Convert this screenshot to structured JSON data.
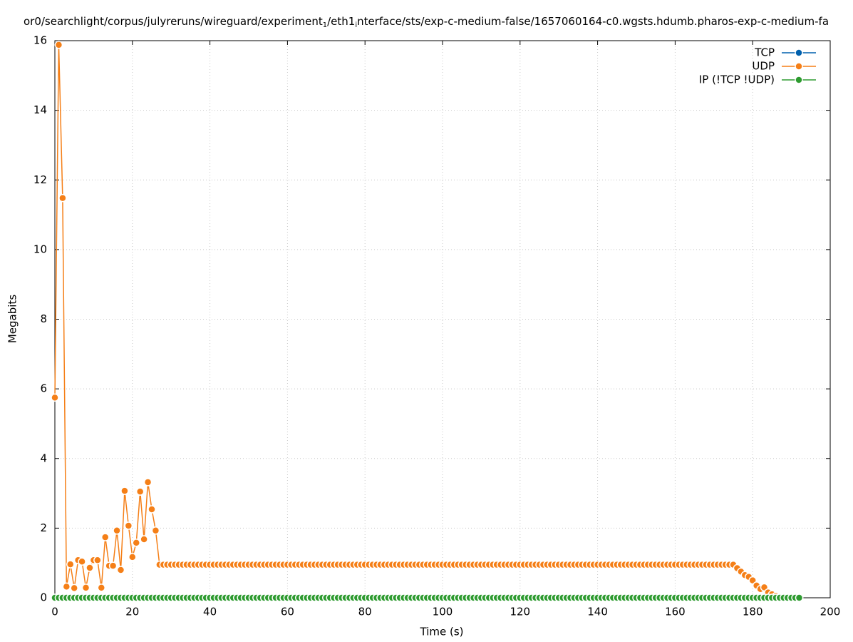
{
  "chart_data": {
    "type": "line",
    "title_segments": [
      "or0/searchlight/corpus/julyreruns/wireguard/experiment",
      "1",
      "/eth1",
      "i",
      "nterface/sts/exp-c-medium-false/1657060164-c0.wgsts.hdumb.pharos-exp-c-medium-fa"
    ],
    "xlabel": "Time (s)",
    "ylabel": "Megabits",
    "xlim": [
      0,
      200
    ],
    "ylim": [
      0,
      16
    ],
    "xticks": [
      0,
      20,
      40,
      60,
      80,
      100,
      120,
      140,
      160,
      180,
      200
    ],
    "yticks": [
      0,
      2,
      4,
      6,
      8,
      10,
      12,
      14,
      16
    ],
    "grid": true,
    "legend": "top-right",
    "x": [
      0,
      1,
      2,
      3,
      4,
      5,
      6,
      7,
      8,
      9,
      10,
      11,
      12,
      13,
      14,
      15,
      16,
      17,
      18,
      19,
      20,
      21,
      22,
      23,
      24,
      25,
      26,
      27,
      28,
      29,
      30,
      31,
      32,
      33,
      34,
      35,
      36,
      37,
      38,
      39,
      40,
      41,
      42,
      43,
      44,
      45,
      46,
      47,
      48,
      49,
      50,
      51,
      52,
      53,
      54,
      55,
      56,
      57,
      58,
      59,
      60,
      61,
      62,
      63,
      64,
      65,
      66,
      67,
      68,
      69,
      70,
      71,
      72,
      73,
      74,
      75,
      76,
      77,
      78,
      79,
      80,
      81,
      82,
      83,
      84,
      85,
      86,
      87,
      88,
      89,
      90,
      91,
      92,
      93,
      94,
      95,
      96,
      97,
      98,
      99,
      100,
      101,
      102,
      103,
      104,
      105,
      106,
      107,
      108,
      109,
      110,
      111,
      112,
      113,
      114,
      115,
      116,
      117,
      118,
      119,
      120,
      121,
      122,
      123,
      124,
      125,
      126,
      127,
      128,
      129,
      130,
      131,
      132,
      133,
      134,
      135,
      136,
      137,
      138,
      139,
      140,
      141,
      142,
      143,
      144,
      145,
      146,
      147,
      148,
      149,
      150,
      151,
      152,
      153,
      154,
      155,
      156,
      157,
      158,
      159,
      160,
      161,
      162,
      163,
      164,
      165,
      166,
      167,
      168,
      169,
      170,
      171,
      172,
      173,
      174,
      175,
      176,
      177,
      178,
      179,
      180,
      181,
      182,
      183,
      184,
      185,
      186,
      187,
      188,
      189,
      190,
      191,
      192
    ],
    "series": [
      {
        "name": "TCP",
        "color": "#0060ad",
        "values": [
          0,
          0,
          0,
          0,
          0,
          0,
          0,
          0,
          0,
          0,
          0,
          0,
          0,
          0,
          0,
          0,
          0,
          0,
          0,
          0,
          0,
          0,
          0,
          0,
          0,
          0,
          0,
          0,
          0,
          0,
          0,
          0,
          0,
          0,
          0,
          0,
          0,
          0,
          0,
          0,
          0,
          0,
          0,
          0,
          0,
          0,
          0,
          0,
          0,
          0,
          0,
          0,
          0,
          0,
          0,
          0,
          0,
          0,
          0,
          0,
          0,
          0,
          0,
          0,
          0,
          0,
          0,
          0,
          0,
          0,
          0,
          0,
          0,
          0,
          0,
          0,
          0,
          0,
          0,
          0,
          0,
          0,
          0,
          0,
          0,
          0,
          0,
          0,
          0,
          0,
          0,
          0,
          0,
          0,
          0,
          0,
          0,
          0,
          0,
          0,
          0,
          0,
          0,
          0,
          0,
          0,
          0,
          0,
          0,
          0,
          0,
          0,
          0,
          0,
          0,
          0,
          0,
          0,
          0,
          0,
          0,
          0,
          0,
          0,
          0,
          0,
          0,
          0,
          0,
          0,
          0,
          0,
          0,
          0,
          0,
          0,
          0,
          0,
          0,
          0,
          0,
          0,
          0,
          0,
          0,
          0,
          0,
          0,
          0,
          0,
          0,
          0,
          0,
          0,
          0,
          0,
          0,
          0,
          0,
          0,
          0,
          0,
          0,
          0,
          0,
          0,
          0,
          0,
          0,
          0,
          0,
          0,
          0,
          0,
          0,
          0,
          0,
          0,
          0,
          0,
          0,
          0,
          0,
          0,
          0,
          0,
          0,
          0,
          0,
          0,
          0,
          0,
          0
        ]
      },
      {
        "name": "UDP",
        "color": "#f57f17",
        "values": [
          5.75,
          15.88,
          11.48,
          0.32,
          0.96,
          0.28,
          1.08,
          1.04,
          0.29,
          0.86,
          1.08,
          1.08,
          0.29,
          1.74,
          0.92,
          0.92,
          1.93,
          0.8,
          3.07,
          2.07,
          1.17,
          1.58,
          3.05,
          1.68,
          3.32,
          2.54,
          1.93,
          0.95,
          0.95,
          0.95,
          0.95,
          0.95,
          0.95,
          0.95,
          0.95,
          0.95,
          0.95,
          0.95,
          0.95,
          0.95,
          0.95,
          0.95,
          0.95,
          0.95,
          0.95,
          0.95,
          0.95,
          0.95,
          0.95,
          0.95,
          0.95,
          0.95,
          0.95,
          0.95,
          0.95,
          0.95,
          0.95,
          0.95,
          0.95,
          0.95,
          0.95,
          0.95,
          0.95,
          0.95,
          0.95,
          0.95,
          0.95,
          0.95,
          0.95,
          0.95,
          0.95,
          0.95,
          0.95,
          0.95,
          0.95,
          0.95,
          0.95,
          0.95,
          0.95,
          0.95,
          0.95,
          0.95,
          0.95,
          0.95,
          0.95,
          0.95,
          0.95,
          0.95,
          0.95,
          0.95,
          0.95,
          0.95,
          0.95,
          0.95,
          0.95,
          0.95,
          0.95,
          0.95,
          0.95,
          0.95,
          0.95,
          0.95,
          0.95,
          0.95,
          0.95,
          0.95,
          0.95,
          0.95,
          0.95,
          0.95,
          0.95,
          0.95,
          0.95,
          0.95,
          0.95,
          0.95,
          0.95,
          0.95,
          0.95,
          0.95,
          0.95,
          0.95,
          0.95,
          0.95,
          0.95,
          0.95,
          0.95,
          0.95,
          0.95,
          0.95,
          0.95,
          0.95,
          0.95,
          0.95,
          0.95,
          0.95,
          0.95,
          0.95,
          0.95,
          0.95,
          0.95,
          0.95,
          0.95,
          0.95,
          0.95,
          0.95,
          0.95,
          0.95,
          0.95,
          0.95,
          0.95,
          0.95,
          0.95,
          0.95,
          0.95,
          0.95,
          0.95,
          0.95,
          0.95,
          0.95,
          0.95,
          0.95,
          0.95,
          0.95,
          0.95,
          0.95,
          0.95,
          0.95,
          0.95,
          0.95,
          0.95,
          0.95,
          0.95,
          0.95,
          0.95,
          0.95,
          0.85,
          0.75,
          0.65,
          0.6,
          0.5,
          0.35,
          0.25,
          0.3,
          0.15,
          0.1,
          0.05,
          0.02,
          0,
          0,
          0,
          0,
          0
        ]
      },
      {
        "name": "IP (!TCP  !UDP)",
        "color": "#2e9b30",
        "values": [
          0,
          0,
          0,
          0,
          0,
          0,
          0,
          0,
          0,
          0,
          0,
          0,
          0,
          0,
          0,
          0,
          0,
          0,
          0,
          0,
          0,
          0,
          0,
          0,
          0,
          0,
          0,
          0,
          0,
          0,
          0,
          0,
          0,
          0,
          0,
          0,
          0,
          0,
          0,
          0,
          0,
          0,
          0,
          0,
          0,
          0,
          0,
          0,
          0,
          0,
          0,
          0,
          0,
          0,
          0,
          0,
          0,
          0,
          0,
          0,
          0,
          0,
          0,
          0,
          0,
          0,
          0,
          0,
          0,
          0,
          0,
          0,
          0,
          0,
          0,
          0,
          0,
          0,
          0,
          0,
          0,
          0,
          0,
          0,
          0,
          0,
          0,
          0,
          0,
          0,
          0,
          0,
          0,
          0,
          0,
          0,
          0,
          0,
          0,
          0,
          0,
          0,
          0,
          0,
          0,
          0,
          0,
          0,
          0,
          0,
          0,
          0,
          0,
          0,
          0,
          0,
          0,
          0,
          0,
          0,
          0,
          0,
          0,
          0,
          0,
          0,
          0,
          0,
          0,
          0,
          0,
          0,
          0,
          0,
          0,
          0,
          0,
          0,
          0,
          0,
          0,
          0,
          0,
          0,
          0,
          0,
          0,
          0,
          0,
          0,
          0,
          0,
          0,
          0,
          0,
          0,
          0,
          0,
          0,
          0,
          0,
          0,
          0,
          0,
          0,
          0,
          0,
          0,
          0,
          0,
          0,
          0,
          0,
          0,
          0,
          0,
          0,
          0,
          0,
          0,
          0,
          0,
          0,
          0,
          0,
          0,
          0,
          0,
          0,
          0,
          0,
          0,
          0
        ]
      }
    ]
  }
}
